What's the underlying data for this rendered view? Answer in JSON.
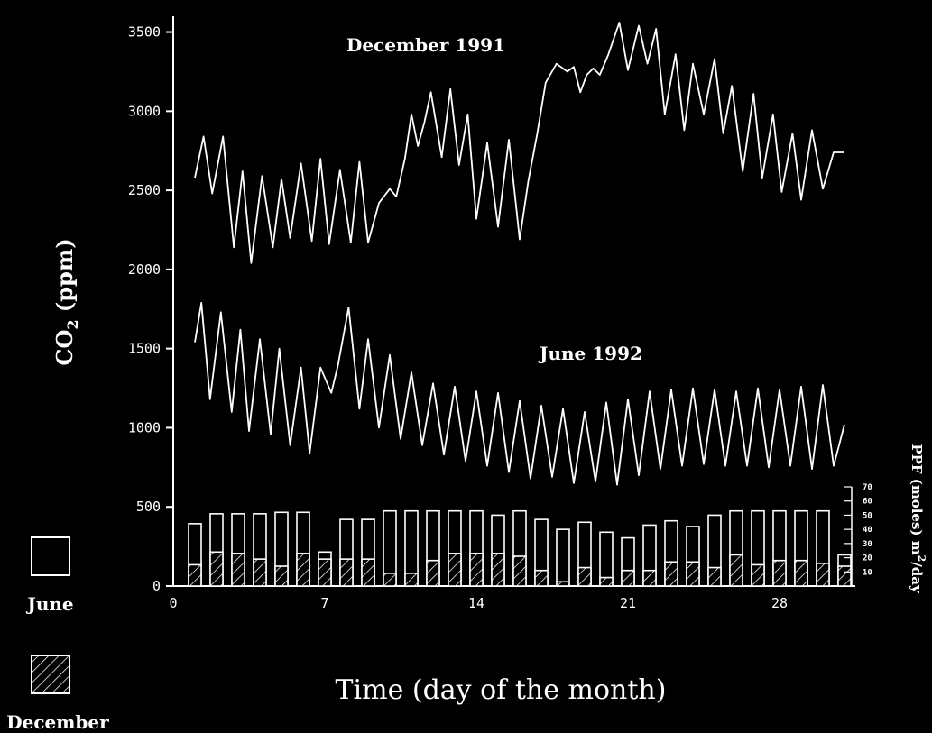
{
  "chart_data": {
    "type": "line",
    "title": "",
    "xlabel": "Time (day of the month)",
    "ylabel_main": "CO",
    "ylabel_sub": "2",
    "ylabel_unit": " (ppm)",
    "xlim": [
      0,
      31.5
    ],
    "ylim": [
      0,
      3600
    ],
    "x_ticks": [
      0,
      7,
      14,
      21,
      28
    ],
    "y_ticks": [
      0,
      500,
      1000,
      1500,
      2000,
      2500,
      3000,
      3500
    ],
    "grid": false,
    "annotations": [
      {
        "text": "December 1991",
        "x": 15,
        "y": 3370
      },
      {
        "text": "June 1992",
        "x": 19.5,
        "y": 1440
      }
    ],
    "series": [
      {
        "name": "December 1991",
        "x": [
          1.0,
          1.4,
          1.8,
          2.3,
          2.8,
          3.2,
          3.6,
          4.1,
          4.6,
          5.0,
          5.4,
          5.9,
          6.4,
          6.8,
          7.2,
          7.7,
          8.2,
          8.6,
          9.0,
          9.5,
          10.0,
          10.3,
          10.7,
          11.0,
          11.3,
          11.6,
          11.9,
          12.4,
          12.8,
          13.2,
          13.6,
          14.0,
          14.5,
          15.0,
          15.5,
          16.0,
          16.4,
          16.8,
          17.2,
          17.7,
          18.2,
          18.5,
          18.8,
          19.1,
          19.4,
          19.7,
          20.1,
          20.6,
          21.0,
          21.5,
          21.9,
          22.3,
          22.7,
          23.2,
          23.6,
          24.0,
          24.5,
          25.0,
          25.4,
          25.8,
          26.3,
          26.8,
          27.2,
          27.7,
          28.1,
          28.6,
          29.0,
          29.5,
          30.0,
          30.5,
          31.0
        ],
        "values": [
          2580,
          2840,
          2480,
          2840,
          2140,
          2620,
          2040,
          2590,
          2140,
          2570,
          2200,
          2670,
          2180,
          2700,
          2160,
          2630,
          2170,
          2680,
          2170,
          2420,
          2510,
          2460,
          2700,
          2980,
          2780,
          2930,
          3120,
          2710,
          3140,
          2660,
          2980,
          2320,
          2800,
          2270,
          2820,
          2190,
          2560,
          2850,
          3180,
          3300,
          3250,
          3280,
          3120,
          3230,
          3270,
          3230,
          3360,
          3560,
          3260,
          3540,
          3300,
          3520,
          2980,
          3360,
          2880,
          3300,
          2980,
          3330,
          2860,
          3160,
          2620,
          3110,
          2580,
          2980,
          2490,
          2860,
          2440,
          2880,
          2510,
          2740,
          2740
        ]
      },
      {
        "name": "June 1992",
        "x": [
          1.0,
          1.3,
          1.7,
          2.2,
          2.7,
          3.1,
          3.5,
          4.0,
          4.5,
          4.9,
          5.4,
          5.9,
          6.3,
          6.8,
          7.3,
          7.6,
          8.1,
          8.6,
          9.0,
          9.5,
          10.0,
          10.5,
          11.0,
          11.5,
          12.0,
          12.5,
          13.0,
          13.5,
          14.0,
          14.5,
          15.0,
          15.5,
          16.0,
          16.5,
          17.0,
          17.5,
          18.0,
          18.5,
          19.0,
          19.5,
          20.0,
          20.5,
          21.0,
          21.5,
          22.0,
          22.5,
          23.0,
          23.5,
          24.0,
          24.5,
          25.0,
          25.5,
          26.0,
          26.5,
          27.0,
          27.5,
          28.0,
          28.5,
          29.0,
          29.5,
          30.0,
          30.5,
          31.0
        ],
        "values": [
          1540,
          1790,
          1180,
          1730,
          1100,
          1620,
          980,
          1560,
          960,
          1500,
          890,
          1380,
          840,
          1380,
          1220,
          1390,
          1760,
          1120,
          1560,
          1000,
          1460,
          930,
          1350,
          890,
          1280,
          830,
          1260,
          790,
          1230,
          760,
          1220,
          720,
          1170,
          680,
          1140,
          690,
          1120,
          650,
          1100,
          660,
          1160,
          640,
          1180,
          700,
          1230,
          740,
          1240,
          760,
          1250,
          770,
          1240,
          760,
          1230,
          760,
          1250,
          750,
          1240,
          760,
          1260,
          740,
          1270,
          760,
          1020
        ]
      }
    ],
    "ppf_axis": {
      "label": "PPF (moles) m",
      "label_sup": "2",
      "label_tail": "/day",
      "ticks": [
        10,
        20,
        30,
        40,
        50,
        60,
        70
      ],
      "max": 70
    },
    "ppf_bars": {
      "days": [
        1,
        2,
        3,
        4,
        5,
        6,
        7,
        8,
        9,
        10,
        11,
        12,
        13,
        14,
        15,
        16,
        17,
        18,
        19,
        20,
        21,
        22,
        23,
        24,
        25,
        26,
        27,
        28,
        29,
        30,
        31
      ],
      "june": [
        44,
        51,
        51,
        51,
        52,
        52,
        24,
        47,
        47,
        53,
        53,
        53,
        53,
        53,
        50,
        53,
        47,
        40,
        45,
        38,
        34,
        43,
        46,
        42,
        50,
        53,
        53,
        53,
        53,
        53,
        22
      ],
      "december": [
        15,
        24,
        23,
        19,
        14,
        23,
        19,
        19,
        19,
        9,
        9,
        18,
        23,
        23,
        23,
        21,
        11,
        3,
        13,
        6,
        11,
        11,
        17,
        17,
        13,
        22,
        15,
        18,
        18,
        16,
        14
      ]
    },
    "legend": {
      "items": [
        {
          "label": "June",
          "pattern": "open"
        },
        {
          "label": "December",
          "pattern": "hatched"
        }
      ],
      "placement": "bottom-left"
    }
  }
}
